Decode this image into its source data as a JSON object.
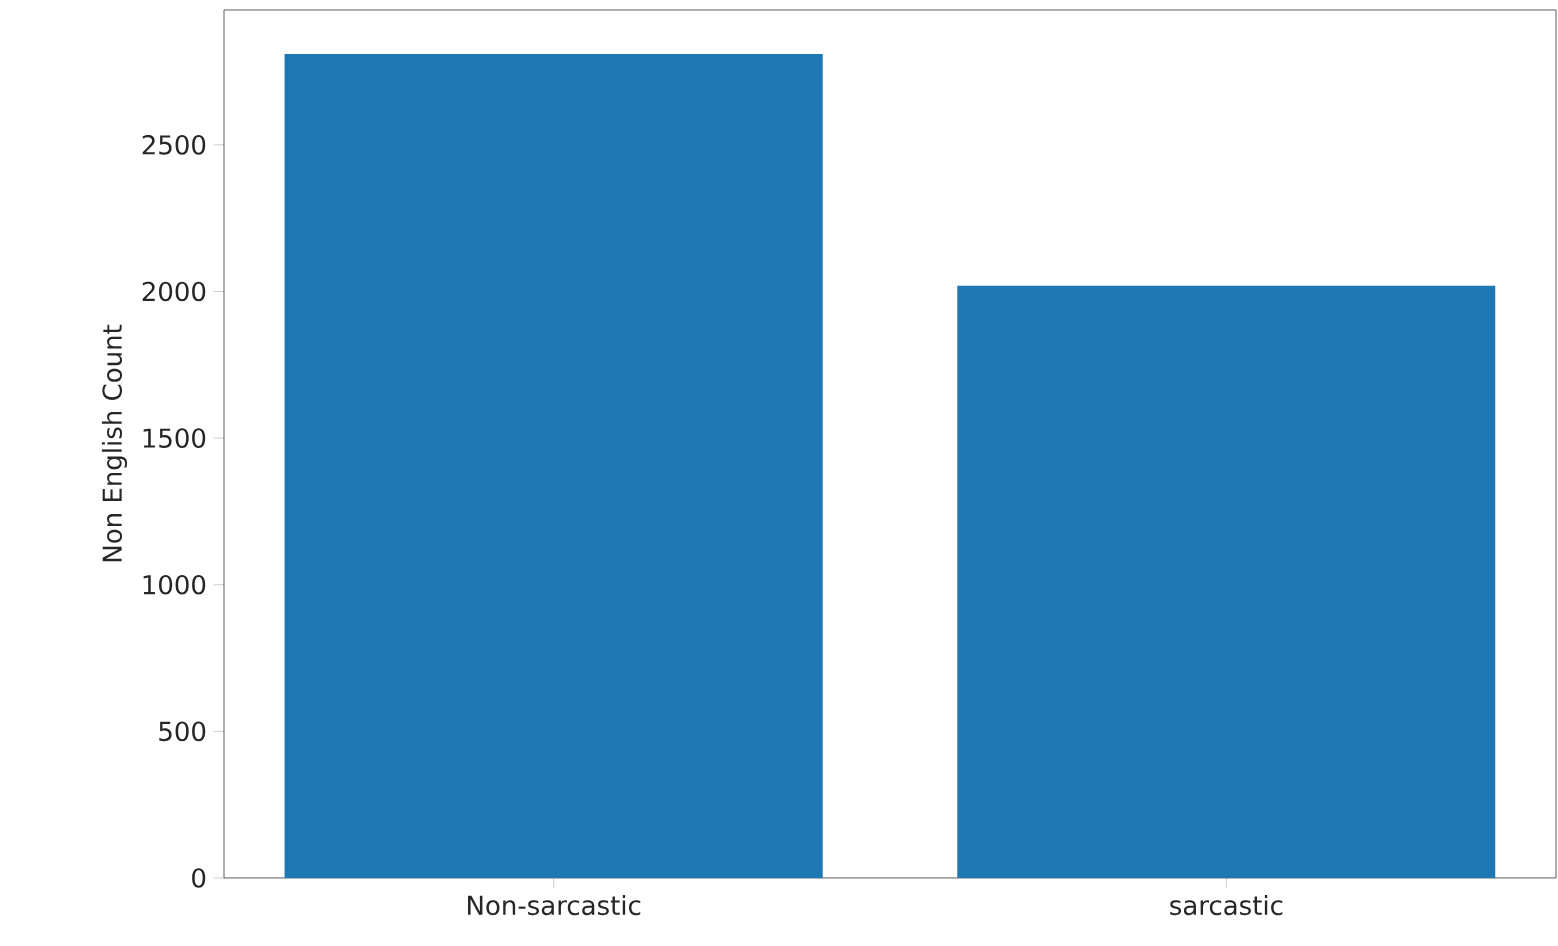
{
  "chart_data": {
    "type": "bar",
    "ylabel": "Non English Count",
    "categories": [
      "Non-sarcastic",
      "sarcastic"
    ],
    "values": [
      2810,
      2020
    ],
    "color": "#1f77b4",
    "ylim": [
      0,
      2960
    ],
    "yticks": [
      0,
      500,
      1000,
      1500,
      2000,
      2500
    ]
  }
}
